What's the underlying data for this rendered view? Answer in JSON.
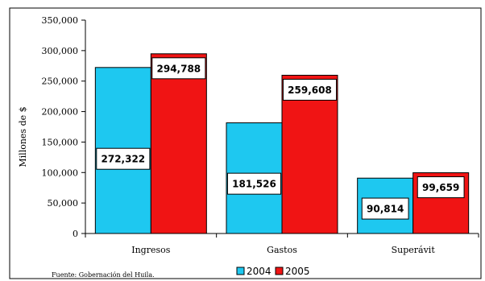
{
  "chart_data": {
    "type": "bar",
    "title": "",
    "categories": [
      "Ingresos",
      "Gastos",
      "Superávit"
    ],
    "series": [
      {
        "name": "2004",
        "color": "#1EC8F0",
        "values": [
          272322,
          181526,
          90814
        ],
        "labels": [
          "272,322",
          "181,526",
          "90,814"
        ]
      },
      {
        "name": "2005",
        "color": "#F01414",
        "values": [
          294788,
          259608,
          99659
        ],
        "labels": [
          "294,788",
          "259,608",
          "99,659"
        ]
      }
    ],
    "ylabel": "Millones de $",
    "xlabel": "",
    "ylim": [
      0,
      350000
    ],
    "yticks": [
      0,
      50000,
      100000,
      150000,
      200000,
      250000,
      300000,
      350000
    ],
    "ytick_labels": [
      "0",
      "50,000",
      "100,000",
      "150,000",
      "200,000",
      "250,000",
      "300,000",
      "350,000"
    ],
    "grid": false,
    "legend_position": "bottom"
  },
  "source": "Fuente: Gobernación del Huila."
}
